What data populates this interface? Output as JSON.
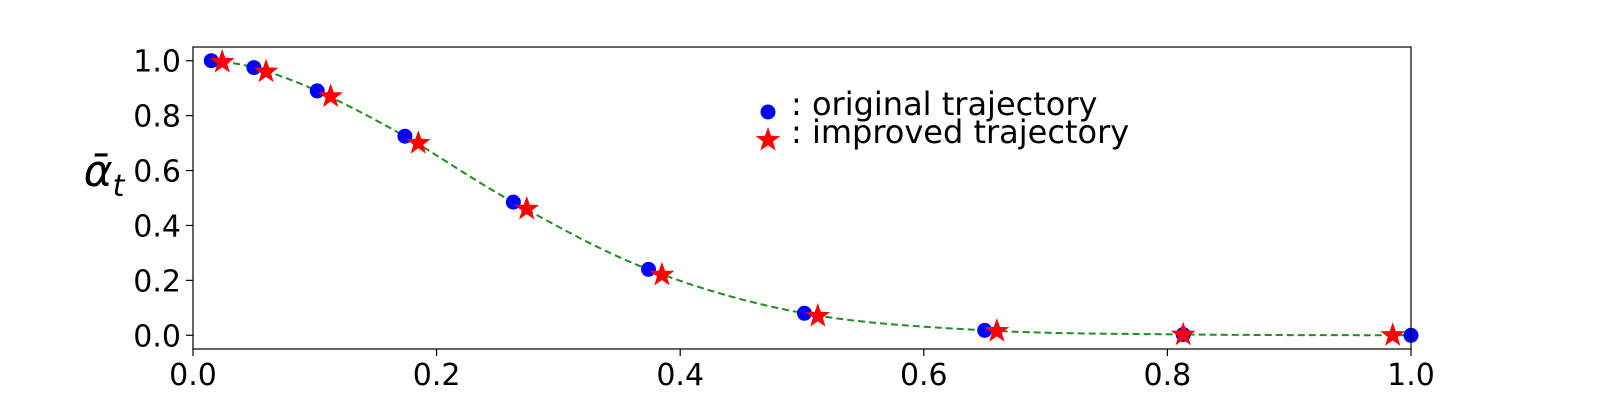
{
  "chart_data": {
    "type": "scatter",
    "title": "",
    "xlabel": "",
    "ylabel": "ᾱ",
    "ylabel_subscript": "t",
    "xlim": [
      0.0,
      1.0
    ],
    "ylim": [
      -0.05,
      1.05
    ],
    "xticks": [
      0.0,
      0.2,
      0.4,
      0.6,
      0.8,
      1.0
    ],
    "xtick_labels": [
      "0.0",
      "0.2",
      "0.4",
      "0.6",
      "0.8",
      "1.0"
    ],
    "yticks": [
      0.0,
      0.2,
      0.4,
      0.6,
      0.8,
      1.0
    ],
    "ytick_labels": [
      "0.0",
      "0.2",
      "0.4",
      "0.6",
      "0.8",
      "1.0"
    ],
    "grid": false,
    "legend": "upper-center",
    "series": [
      {
        "name": ": original trajectory",
        "marker": "circle",
        "color": "#0000ff",
        "x": [
          0.015,
          0.05,
          0.102,
          0.174,
          0.263,
          0.374,
          0.502,
          0.65,
          0.813,
          1.0
        ],
        "y": [
          1.0,
          0.975,
          0.89,
          0.725,
          0.485,
          0.24,
          0.08,
          0.018,
          0.003,
          0.0
        ]
      },
      {
        "name": ": improved trajectory",
        "marker": "star",
        "color": "#ff0000",
        "x": [
          0.024,
          0.06,
          0.113,
          0.185,
          0.274,
          0.385,
          0.513,
          0.66,
          0.813,
          0.985
        ],
        "y": [
          0.995,
          0.96,
          0.87,
          0.7,
          0.46,
          0.22,
          0.07,
          0.015,
          0.002,
          0.0
        ]
      }
    ],
    "curve": {
      "style": "dashed",
      "color": "#228b22",
      "x": [
        0.015,
        0.05,
        0.102,
        0.174,
        0.263,
        0.374,
        0.502,
        0.65,
        0.813,
        1.0
      ],
      "y": [
        1.0,
        0.975,
        0.89,
        0.725,
        0.485,
        0.24,
        0.08,
        0.018,
        0.003,
        0.0
      ]
    }
  }
}
